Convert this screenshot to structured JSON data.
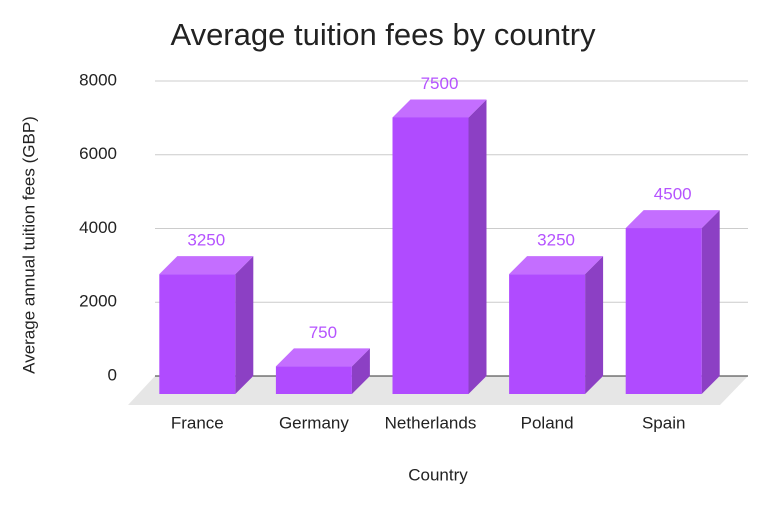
{
  "chart_data": {
    "type": "bar",
    "title": "Average tuition fees by country",
    "x_label": "Country",
    "y_label": "Average annual tuition fees (GBP)",
    "categories": [
      "France",
      "Germany",
      "Netherlands",
      "Poland",
      "Spain"
    ],
    "values": [
      3250,
      750,
      7500,
      3250,
      4500
    ],
    "color": "#b04bff",
    "ylim": [
      0,
      8000
    ],
    "yticks": [
      0,
      2000,
      4000,
      6000,
      8000
    ],
    "grid": true
  }
}
